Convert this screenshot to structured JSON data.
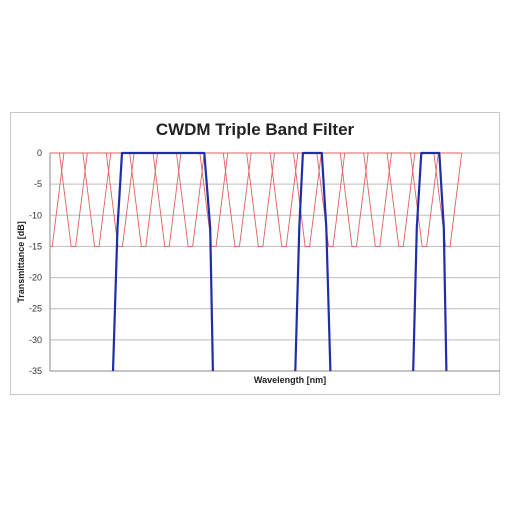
{
  "chart_data": {
    "type": "line",
    "title": "CWDM Triple Band Filter",
    "xlabel": "Wavelength [nm]",
    "ylabel": "Transmittance [dB]",
    "ylim": [
      -35,
      0
    ],
    "xlim": [
      0,
      100
    ],
    "yticks": [
      "0",
      "-5",
      "-10",
      "-15",
      "-20",
      "-25",
      "-30",
      "-35"
    ],
    "grid": true,
    "legend": "none",
    "colors": {
      "channels": "#e06060",
      "filter": "#1f2ea8"
    },
    "series": [
      {
        "role": "filter",
        "color": "#1f2ea8",
        "points": [
          [
            14.0,
            -35
          ],
          [
            15.0,
            -12
          ],
          [
            16.0,
            0
          ],
          [
            34.3,
            0
          ],
          [
            35.6,
            -12
          ],
          [
            36.2,
            -35
          ],
          [
            54.5,
            -35
          ],
          [
            55.4,
            -12
          ],
          [
            56.2,
            0
          ],
          [
            60.4,
            0
          ],
          [
            61.4,
            -12
          ],
          [
            62.3,
            -35
          ],
          [
            80.7,
            -35
          ],
          [
            81.5,
            -12
          ],
          [
            82.5,
            0
          ],
          [
            86.5,
            0
          ],
          [
            87.5,
            -12
          ],
          [
            88.1,
            -35
          ]
        ]
      }
    ],
    "channel_filters": {
      "color": "#e06060",
      "top": 0,
      "bottom": -15,
      "count": 18,
      "start": 0,
      "spacing": 5.2,
      "flat_top": 3.0,
      "flat_bottom": 1.0,
      "edge_width": 1.6
    }
  }
}
